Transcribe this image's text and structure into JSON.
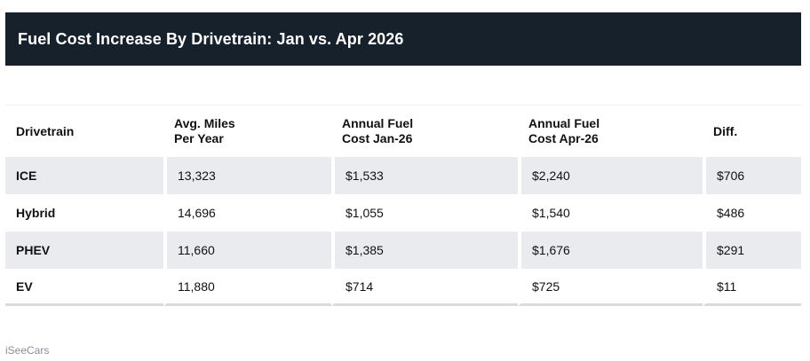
{
  "header": {
    "title": "Fuel Cost Increase By Drivetrain: Jan vs. Apr 2026"
  },
  "table": {
    "columns": [
      {
        "line1": "Drivetrain",
        "line2": ""
      },
      {
        "line1": "Avg. Miles",
        "line2": "Per Year"
      },
      {
        "line1": "Annual Fuel",
        "line2": "Cost Jan-26"
      },
      {
        "line1": "Annual Fuel",
        "line2": "Cost Apr-26"
      },
      {
        "line1": "Diff.",
        "line2": ""
      }
    ],
    "rows": [
      {
        "drivetrain": "ICE",
        "miles": "13,323",
        "cost_jan": "$1,533",
        "cost_apr": "$2,240",
        "diff": "$706"
      },
      {
        "drivetrain": "Hybrid",
        "miles": "14,696",
        "cost_jan": "$1,055",
        "cost_apr": "$1,540",
        "diff": "$486"
      },
      {
        "drivetrain": "PHEV",
        "miles": "11,660",
        "cost_jan": "$1,385",
        "cost_apr": "$1,676",
        "diff": "$291"
      },
      {
        "drivetrain": "EV",
        "miles": "11,880",
        "cost_jan": "$714",
        "cost_apr": "$725",
        "diff": "$11"
      }
    ]
  },
  "footer": {
    "source": "iSeeCars"
  },
  "colors": {
    "title_background": "#17212b",
    "row_shade": "#e9ebee",
    "source_text": "#8a8f96"
  }
}
